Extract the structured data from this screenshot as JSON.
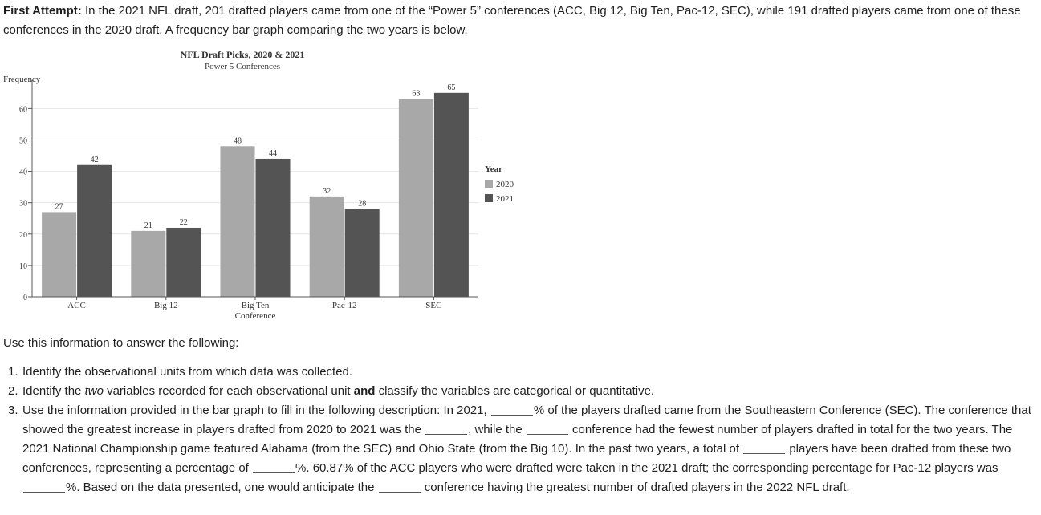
{
  "intro": {
    "lead": "First Attempt:",
    "text": "In the 2021 NFL draft, 201 drafted players came from one of the “Power 5” conferences (ACC, Big 12, Big Ten, Pac-12, SEC), while 191 drafted players came from one of these conferences in the 2020 draft. A frequency bar graph comparing the two years is below."
  },
  "chart_data": {
    "type": "bar",
    "title": "NFL Draft Picks, 2020 & 2021",
    "subtitle": "Power 5 Conferences",
    "ylabel": "Frequency",
    "xlabel": "Conference",
    "ylim": [
      0,
      67
    ],
    "yticks": [
      0,
      10,
      20,
      30,
      40,
      50,
      60
    ],
    "grid": true,
    "legend_position": "right",
    "legend_title": "Year",
    "categories": [
      "ACC",
      "Big 12",
      "Big Ten",
      "Pac-12",
      "SEC"
    ],
    "series": [
      {
        "name": "2020",
        "color": "#a8a8a8",
        "values": [
          27,
          21,
          48,
          32,
          63
        ]
      },
      {
        "name": "2021",
        "color": "#545454",
        "values": [
          42,
          22,
          44,
          28,
          65
        ]
      }
    ]
  },
  "instructions": "Use this information to answer the following:",
  "questions": {
    "q1": {
      "num": "1.",
      "text": "Identify the observational units from which data was collected."
    },
    "q2": {
      "num": "2.",
      "a": "Identify the ",
      "b": "two",
      "c": " variables recorded for each observational unit ",
      "d": "and",
      "e": " classify the variables are categorical or quantitative."
    },
    "q3": {
      "num": "3.",
      "p1": "Use the information provided in the bar graph to fill in the following description: In 2021, ",
      "p2": "% of the players drafted came from the Southeastern Conference (SEC). The conference that showed the greatest increase in players drafted from 2020 to 2021 was the ",
      "p3": ", while the ",
      "p4": " conference had the fewest number of players drafted in total for the two years. The 2021 National Championship game featured Alabama (from the SEC) and Ohio State (from the Big 10). In the past two years, a total of ",
      "p5": " players have been drafted from these two conferences, representing a percentage of ",
      "p6": "%. 60.87% of the ACC players who were drafted were taken in the 2021 draft; the corresponding percentage for Pac-12 players was ",
      "p7": "%. Based on the data presented, one would anticipate the ",
      "p8": " conference having the greatest number of drafted players in the 2022 NFL draft."
    }
  }
}
